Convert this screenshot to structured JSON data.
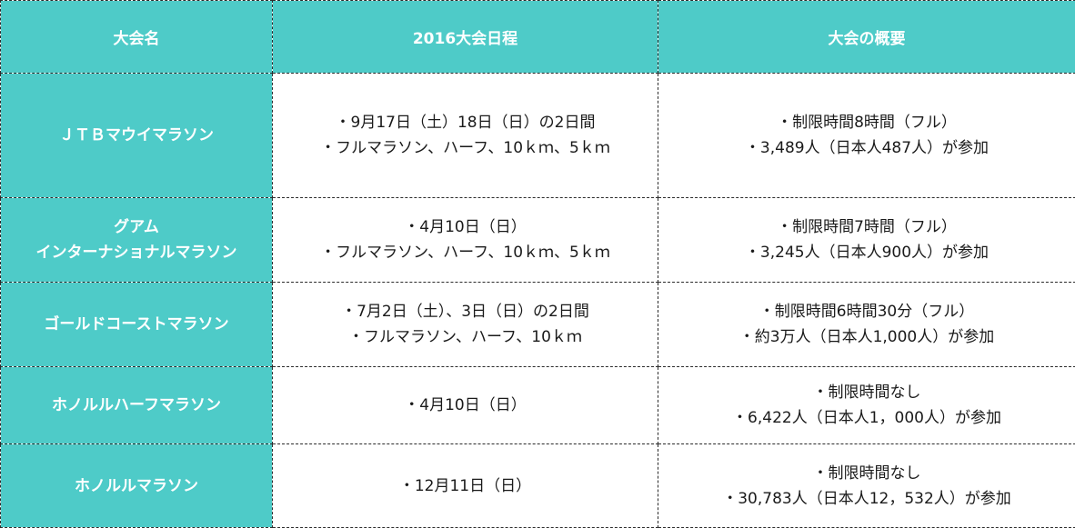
{
  "colors": {
    "accent_teal": "#4ecbc8",
    "text_white": "#ffffff",
    "text_dark": "#1a1a1a"
  },
  "header": {
    "name": "大会名",
    "schedule": "2016大会日程",
    "summary": "大会の概要"
  },
  "rows": [
    {
      "name_lines": [
        "ＪＴＢマウイマラソン"
      ],
      "schedule_lines": [
        "・9月17日（土）18日（日）の2日間",
        "・フルマラソン、ハーフ、10ｋｍ、5ｋｍ"
      ],
      "summary_lines": [
        "・制限時間8時間（フル）",
        "・3,489人（日本人487人）が参加"
      ]
    },
    {
      "name_lines": [
        "グアム",
        "インターナショナルマラソン"
      ],
      "schedule_lines": [
        "・4月10日（日）",
        "・フルマラソン、ハーフ、10ｋｍ、5ｋｍ"
      ],
      "summary_lines": [
        "・制限時間7時間（フル）",
        "・3,245人（日本人900人）が参加"
      ]
    },
    {
      "name_lines": [
        "ゴールドコーストマラソン"
      ],
      "schedule_lines": [
        "・7月2日（土）、3日（日）の2日間",
        "・フルマラソン、ハーフ、10ｋｍ"
      ],
      "summary_lines": [
        "・制限時間6時間30分（フル）",
        "・約3万人（日本人1,000人）が参加"
      ]
    },
    {
      "name_lines": [
        "ホノルルハーフマラソン"
      ],
      "schedule_lines": [
        "・4月10日（日）"
      ],
      "summary_lines": [
        "・制限時間なし",
        "・6,422人（日本人1，000人）が参加"
      ]
    },
    {
      "name_lines": [
        "ホノルルマラソン"
      ],
      "schedule_lines": [
        "・12月11日（日）"
      ],
      "summary_lines": [
        "・制限時間なし",
        "・30,783人（日本人12，532人）が参加"
      ]
    }
  ]
}
